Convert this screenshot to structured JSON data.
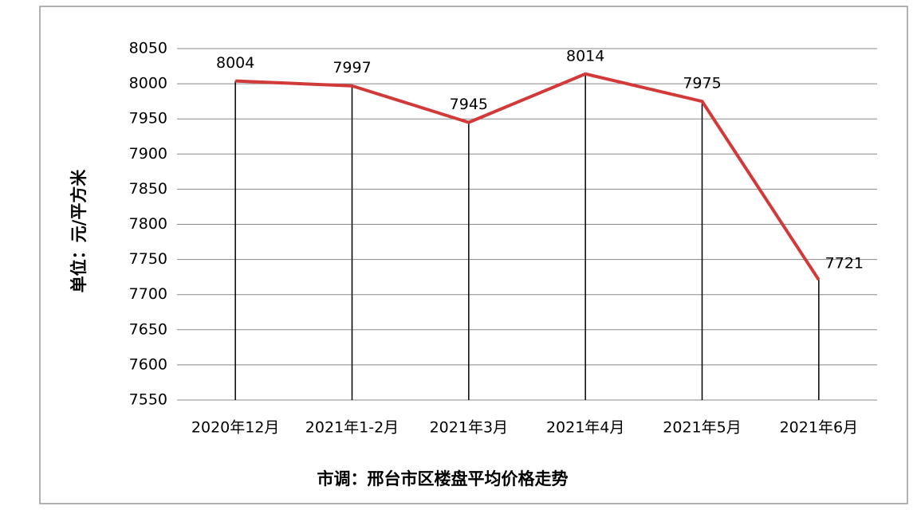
{
  "chart_data": {
    "type": "line",
    "title": "市调：邢台市区楼盘平均价格走势",
    "y_label": "单位：元/平方米",
    "categories": [
      "2020年12月",
      "2021年1-2月",
      "2021年3月",
      "2021年4月",
      "2021年5月",
      "2021年6月"
    ],
    "values": [
      8004,
      7997,
      7945,
      8014,
      7975,
      7721
    ],
    "color": "#d23a3a",
    "drop_lines": true,
    "ylim": [
      7550,
      8050
    ],
    "yticks": [
      7550,
      7600,
      7650,
      7700,
      7750,
      7800,
      7850,
      7900,
      7950,
      8000,
      8050
    ],
    "grid": true
  }
}
